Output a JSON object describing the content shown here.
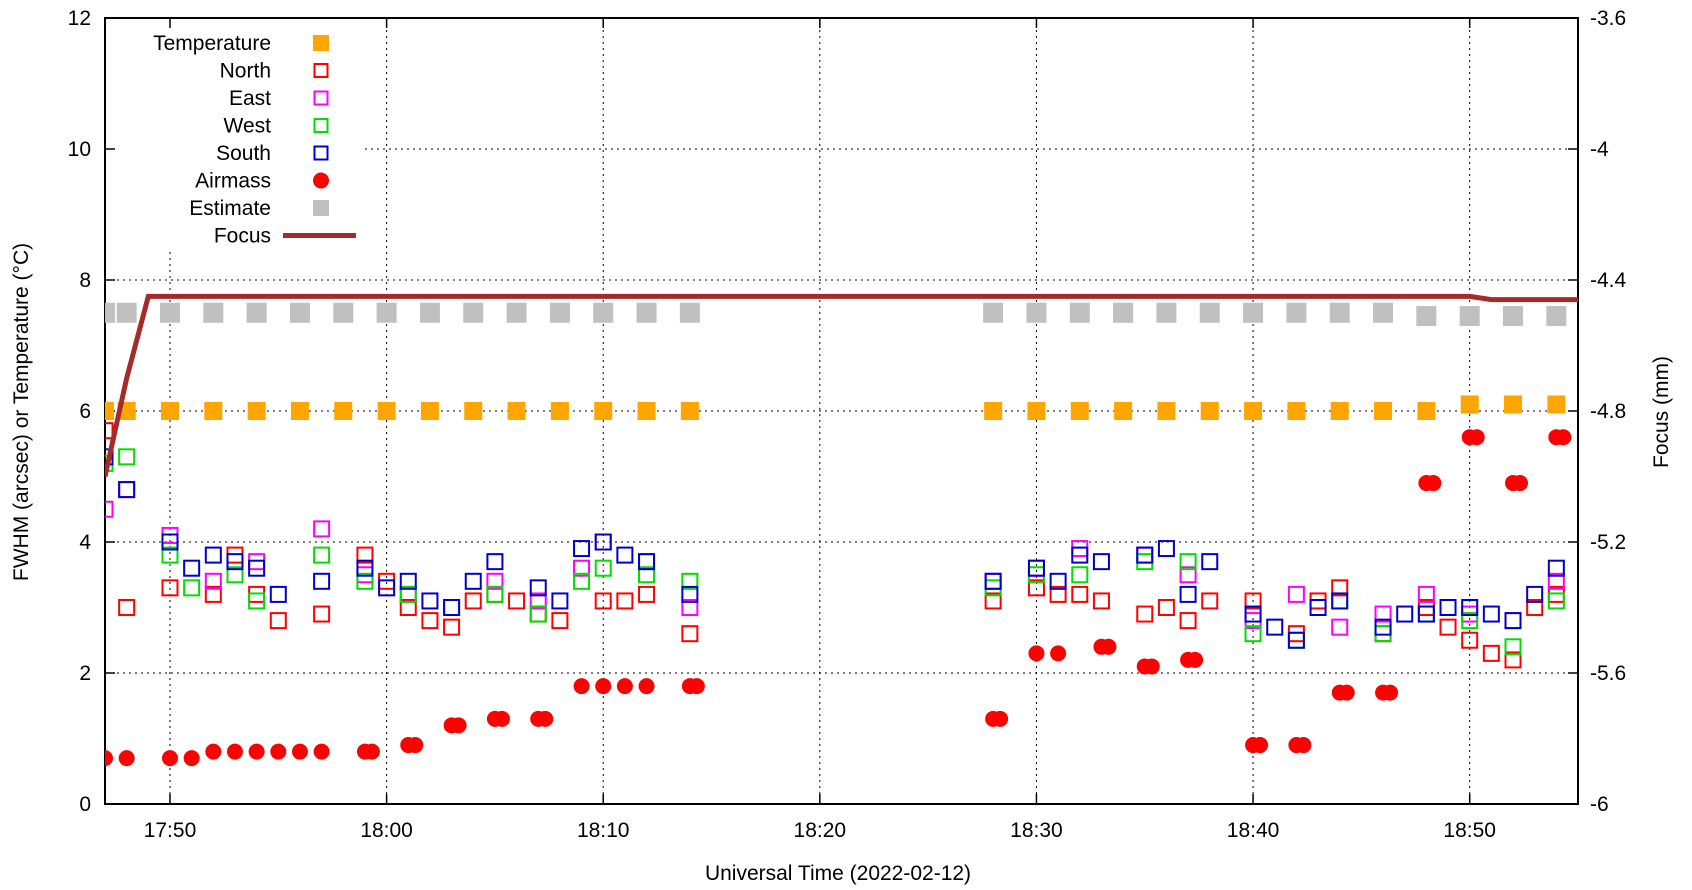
{
  "chart_data": {
    "type": "scatter",
    "xlabel": "Universal Time (2022-02-12)",
    "ylabel": "FWHM (arcsec) or Temperature (°C)",
    "y2label": "Focus (mm)",
    "xlim": [
      "17:47",
      "18:55"
    ],
    "ylim": [
      0,
      12
    ],
    "y2lim": [
      -6,
      -3.6
    ],
    "grid": true,
    "legend_position": "top-left",
    "x_ticks": [
      "17:50",
      "18:00",
      "18:10",
      "18:20",
      "18:30",
      "18:40",
      "18:50"
    ],
    "y_ticks": [
      "0",
      "2",
      "4",
      "6",
      "8",
      "10",
      "12"
    ],
    "y2_ticks": [
      "-6",
      "-5.6",
      "-5.2",
      "-4.8",
      "-4.4",
      "-4",
      "-3.6"
    ],
    "colors": {
      "temperature": "#ffa500",
      "north": "#ff0000",
      "east": "#ff00ff",
      "west": "#00dd00",
      "south": "#0000cc",
      "airmass": "#ff0000",
      "estimate": "#c0c0c0",
      "focus": "#a52a2a"
    },
    "legend": [
      "Temperature",
      "North",
      "East",
      "West",
      "South",
      "Airmass",
      "Estimate",
      "Focus"
    ],
    "series": [
      {
        "name": "Temperature",
        "x": [
          "17:47",
          "17:48",
          "17:50",
          "17:52",
          "17:54",
          "17:56",
          "17:58",
          "18:00",
          "18:02",
          "18:04",
          "18:06",
          "18:08",
          "18:10",
          "18:12",
          "18:14",
          "18:28",
          "18:30",
          "18:32",
          "18:34",
          "18:36",
          "18:38",
          "18:40",
          "18:42",
          "18:44",
          "18:46",
          "18:48",
          "18:50",
          "18:52",
          "18:54"
        ],
        "y": [
          6,
          6,
          6,
          6,
          6,
          6,
          6,
          6,
          6,
          6,
          6,
          6,
          6,
          6,
          6,
          6,
          6,
          6,
          6,
          6,
          6,
          6,
          6,
          6,
          6,
          6,
          6.1,
          6.1,
          6.1
        ]
      },
      {
        "name": "North",
        "x": [
          "17:47",
          "17:48",
          "17:50",
          "17:52",
          "17:53",
          "17:54",
          "17:55",
          "17:57",
          "17:59",
          "18:00",
          "18:01",
          "18:02",
          "18:03",
          "18:04",
          "18:05",
          "18:06",
          "18:07",
          "18:08",
          "18:10",
          "18:11",
          "18:12",
          "18:14",
          "18:28",
          "18:30",
          "18:31",
          "18:32",
          "18:33",
          "18:35",
          "18:36",
          "18:37",
          "18:38",
          "18:40",
          "18:42",
          "18:43",
          "18:44",
          "18:46",
          "18:48",
          "18:49",
          "18:50",
          "18:51",
          "18:52",
          "18:53",
          "18:54"
        ],
        "y": [
          5.7,
          3.0,
          3.3,
          3.2,
          3.8,
          3.2,
          2.8,
          2.9,
          3.8,
          3.4,
          3.0,
          2.8,
          2.7,
          3.1,
          3.2,
          3.1,
          2.9,
          2.8,
          3.1,
          3.1,
          3.2,
          2.6,
          3.1,
          3.3,
          3.2,
          3.2,
          3.1,
          2.9,
          3.0,
          2.8,
          3.1,
          3.1,
          2.6,
          3.1,
          3.3,
          2.6,
          3.0,
          2.7,
          2.5,
          2.3,
          2.2,
          3.0,
          3.2
        ]
      },
      {
        "name": "East",
        "x": [
          "17:47",
          "17:48",
          "17:50",
          "17:52",
          "17:54",
          "17:57",
          "17:59",
          "18:01",
          "18:03",
          "18:05",
          "18:07",
          "18:09",
          "18:10",
          "18:12",
          "18:14",
          "18:28",
          "18:30",
          "18:32",
          "18:35",
          "18:37",
          "18:40",
          "18:42",
          "18:44",
          "18:46",
          "18:48",
          "18:50",
          "18:52",
          "18:54"
        ],
        "y": [
          4.5,
          4.8,
          4.1,
          3.4,
          3.7,
          4.2,
          3.5,
          3.2,
          3.0,
          3.4,
          3.1,
          3.6,
          4.0,
          3.7,
          3.0,
          3.4,
          3.6,
          3.9,
          3.8,
          3.5,
          2.8,
          3.2,
          2.7,
          2.9,
          3.2,
          2.9,
          2.8,
          3.4
        ]
      },
      {
        "name": "West",
        "x": [
          "17:47",
          "17:48",
          "17:50",
          "17:51",
          "17:53",
          "17:54",
          "17:57",
          "17:59",
          "18:01",
          "18:03",
          "18:05",
          "18:07",
          "18:09",
          "18:10",
          "18:12",
          "18:14",
          "18:28",
          "18:30",
          "18:32",
          "18:35",
          "18:37",
          "18:40",
          "18:42",
          "18:44",
          "18:46",
          "18:48",
          "18:50",
          "18:52",
          "18:54"
        ],
        "y": [
          5.2,
          5.3,
          3.8,
          3.3,
          3.5,
          3.1,
          3.8,
          3.4,
          3.2,
          3.0,
          3.2,
          2.9,
          3.4,
          3.6,
          3.5,
          3.4,
          3.3,
          3.5,
          3.5,
          3.7,
          3.7,
          2.6,
          2.5,
          3.1,
          2.6,
          2.9,
          2.8,
          2.4,
          3.1
        ]
      },
      {
        "name": "South",
        "x": [
          "17:47",
          "17:48",
          "17:50",
          "17:51",
          "17:52",
          "17:53",
          "17:54",
          "17:55",
          "17:57",
          "17:59",
          "18:00",
          "18:01",
          "18:02",
          "18:03",
          "18:04",
          "18:05",
          "18:07",
          "18:08",
          "18:09",
          "18:10",
          "18:11",
          "18:12",
          "18:14",
          "18:28",
          "18:30",
          "18:31",
          "18:32",
          "18:33",
          "18:35",
          "18:36",
          "18:37",
          "18:38",
          "18:40",
          "18:41",
          "18:42",
          "18:43",
          "18:44",
          "18:46",
          "18:47",
          "18:48",
          "18:49",
          "18:50",
          "18:51",
          "18:52",
          "18:53",
          "18:54"
        ],
        "y": [
          5.3,
          4.8,
          4.0,
          3.6,
          3.8,
          3.7,
          3.6,
          3.2,
          3.4,
          3.6,
          3.3,
          3.4,
          3.1,
          3.0,
          3.4,
          3.7,
          3.3,
          3.1,
          3.9,
          4.0,
          3.8,
          3.7,
          3.2,
          3.4,
          3.6,
          3.4,
          3.8,
          3.7,
          3.8,
          3.9,
          3.2,
          3.7,
          2.9,
          2.7,
          2.5,
          3.0,
          3.1,
          2.7,
          2.9,
          2.9,
          3.0,
          3.0,
          2.9,
          2.8,
          3.2,
          3.6
        ]
      },
      {
        "name": "Airmass",
        "x": [
          "17:47",
          "17:48",
          "17:50",
          "17:51",
          "17:52",
          "17:53",
          "17:54",
          "17:55",
          "17:56",
          "17:57",
          "17:59",
          "17:59",
          "18:01",
          "18:01",
          "18:03",
          "18:03",
          "18:05",
          "18:05",
          "18:07",
          "18:07",
          "18:09",
          "18:10",
          "18:11",
          "18:12",
          "18:14",
          "18:14",
          "18:28",
          "18:28",
          "18:30",
          "18:31",
          "18:33",
          "18:33",
          "18:35",
          "18:35",
          "18:37",
          "18:37",
          "18:40",
          "18:40",
          "18:42",
          "18:42",
          "18:44",
          "18:44",
          "18:46",
          "18:46",
          "18:48",
          "18:48",
          "18:50",
          "18:50",
          "18:52",
          "18:52",
          "18:54",
          "18:54"
        ],
        "y": [
          0.7,
          0.7,
          0.7,
          0.7,
          0.8,
          0.8,
          0.8,
          0.8,
          0.8,
          0.8,
          0.8,
          0.8,
          0.9,
          0.9,
          1.2,
          1.2,
          1.3,
          1.3,
          1.3,
          1.3,
          1.8,
          1.8,
          1.8,
          1.8,
          1.8,
          1.8,
          1.3,
          1.3,
          2.3,
          2.3,
          2.4,
          2.4,
          2.1,
          2.1,
          2.2,
          2.2,
          0.9,
          0.9,
          0.9,
          0.9,
          1.7,
          1.7,
          1.7,
          1.7,
          4.9,
          4.9,
          5.6,
          5.6,
          4.9,
          4.9,
          5.6,
          5.6
        ]
      },
      {
        "name": "Estimate",
        "x": [
          "17:47",
          "17:48",
          "17:50",
          "17:52",
          "17:54",
          "17:56",
          "17:58",
          "18:00",
          "18:02",
          "18:04",
          "18:06",
          "18:08",
          "18:10",
          "18:12",
          "18:14",
          "18:28",
          "18:30",
          "18:32",
          "18:34",
          "18:36",
          "18:38",
          "18:40",
          "18:42",
          "18:44",
          "18:46",
          "18:48",
          "18:50",
          "18:52",
          "18:54"
        ],
        "y": [
          7.5,
          7.5,
          7.5,
          7.5,
          7.5,
          7.5,
          7.5,
          7.5,
          7.5,
          7.5,
          7.5,
          7.5,
          7.5,
          7.5,
          7.5,
          7.5,
          7.5,
          7.5,
          7.5,
          7.5,
          7.5,
          7.5,
          7.5,
          7.5,
          7.5,
          7.45,
          7.45,
          7.45,
          7.45
        ]
      },
      {
        "name": "Focus",
        "axis": "y2",
        "x": [
          "17:47",
          "17:48",
          "17:49",
          "18:50",
          "18:51",
          "18:55"
        ],
        "y": [
          -5.0,
          -4.7,
          -4.45,
          -4.45,
          -4.46,
          -4.46
        ]
      }
    ]
  }
}
